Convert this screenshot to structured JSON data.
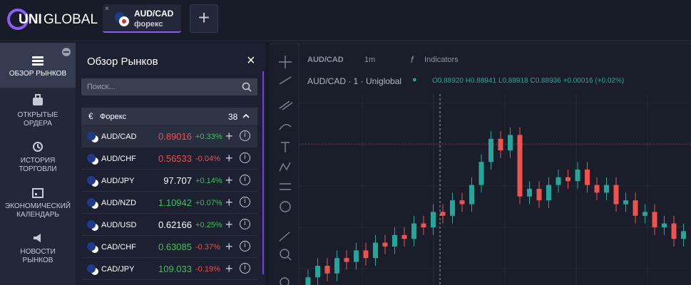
{
  "header": {
    "logo_bold": "UNI",
    "logo_light": "GLOBAL",
    "tab": {
      "symbol": "AUD/CAD",
      "subtitle": "форекс"
    }
  },
  "nav": [
    "ОБЗОР РЫНКОВ",
    "ОТКРЫТЫЕ ОРДЕРА",
    "ИСТОРИЯ ТОРГОВЛИ",
    "ЭКОНОМИЧЕСКИЙ КАЛЕНДАРЬ",
    "НОВОСТИ РЫНКОВ"
  ],
  "panel": {
    "title": "Обзор Рынков",
    "search_placeholder": "Поиск...",
    "group": {
      "name": "Форекс",
      "count": 38
    },
    "rows": [
      {
        "symbol": "AUD/CAD",
        "price": 0.89016,
        "change": "+0.33%",
        "price_color": "#f04d4d"
      },
      {
        "symbol": "AUD/CHF",
        "price": 0.56533,
        "change": "-0.04%",
        "price_color": "#f04d4d"
      },
      {
        "symbol": "AUD/JPY",
        "price": 97.707,
        "change": "+0.14%",
        "price_color": "#ffffff"
      },
      {
        "symbol": "AUD/NZD",
        "price": 1.10942,
        "change": "+0.07%",
        "price_color": "#3fc05a"
      },
      {
        "symbol": "AUD/USD",
        "price": 0.62166,
        "change": "+0.25%",
        "price_color": "#ffffff"
      },
      {
        "symbol": "CAD/CHF",
        "price": 0.63085,
        "change": "-0.37%",
        "price_color": "#3fc05a"
      },
      {
        "symbol": "CAD/JPY",
        "price": 109.033,
        "change": "-0.19%",
        "price_color": "#3fc05a"
      }
    ]
  },
  "chart": {
    "toolbar": {
      "symbol": "AUD/CAD",
      "interval": "1m",
      "indicators": "Indicators"
    },
    "legend": {
      "title": "AUD/CAD · 1 · Uniglobal",
      "o_label": "O",
      "o": "0.88920",
      "h_label": "H",
      "h": "0.88941",
      "l_label": "L",
      "l": "0.88918",
      "c_label": "C",
      "c": "0.88936",
      "change": "+0.00016 (+0.02%)"
    },
    "candles": {
      "type": "candlestick",
      "ylim": [
        0.8855,
        0.8905
      ],
      "up_color": "#26a69a",
      "down_color": "#ef5350",
      "open": [
        0.8855,
        0.8857,
        0.886,
        0.8858,
        0.8862,
        0.8861,
        0.8864,
        0.8862,
        0.8866,
        0.8865,
        0.8868,
        0.8867,
        0.8871,
        0.887,
        0.8874,
        0.8873,
        0.8877,
        0.8876,
        0.8881,
        0.8887,
        0.8893,
        0.889,
        0.8894,
        0.8878,
        0.888,
        0.8877,
        0.8881,
        0.8883,
        0.8882,
        0.8885,
        0.8881,
        0.8879,
        0.8881,
        0.8876,
        0.8877,
        0.8873,
        0.8874,
        0.887,
        0.8871,
        0.8867
      ],
      "high": [
        0.8859,
        0.8862,
        0.8862,
        0.8864,
        0.8864,
        0.8866,
        0.8866,
        0.8868,
        0.8868,
        0.887,
        0.887,
        0.8873,
        0.8873,
        0.8876,
        0.8876,
        0.8879,
        0.8879,
        0.8883,
        0.8889,
        0.8895,
        0.8895,
        0.8896,
        0.8896,
        0.8882,
        0.8882,
        0.8883,
        0.8885,
        0.8885,
        0.8887,
        0.8887,
        0.8883,
        0.8883,
        0.8883,
        0.8879,
        0.8879,
        0.8876,
        0.8876,
        0.8873,
        0.8873,
        0.8871
      ],
      "low": [
        0.8853,
        0.8853,
        0.8856,
        0.8856,
        0.8859,
        0.8859,
        0.886,
        0.886,
        0.8863,
        0.8863,
        0.8865,
        0.8865,
        0.8868,
        0.8868,
        0.8871,
        0.8871,
        0.8874,
        0.8874,
        0.8879,
        0.8885,
        0.8888,
        0.8888,
        0.8876,
        0.8876,
        0.8875,
        0.8875,
        0.8879,
        0.888,
        0.888,
        0.8879,
        0.8877,
        0.8877,
        0.8874,
        0.8874,
        0.8871,
        0.8871,
        0.8868,
        0.8868,
        0.8865,
        0.8865
      ],
      "close": [
        0.8857,
        0.886,
        0.8858,
        0.8862,
        0.8861,
        0.8864,
        0.8862,
        0.8866,
        0.8865,
        0.8868,
        0.8867,
        0.8871,
        0.887,
        0.8874,
        0.8873,
        0.8877,
        0.8876,
        0.8881,
        0.8887,
        0.8893,
        0.889,
        0.8894,
        0.8878,
        0.888,
        0.8877,
        0.8881,
        0.8883,
        0.8882,
        0.8885,
        0.8881,
        0.8879,
        0.8881,
        0.8876,
        0.8877,
        0.8873,
        0.8874,
        0.887,
        0.8871,
        0.8867,
        0.8869
      ]
    }
  }
}
